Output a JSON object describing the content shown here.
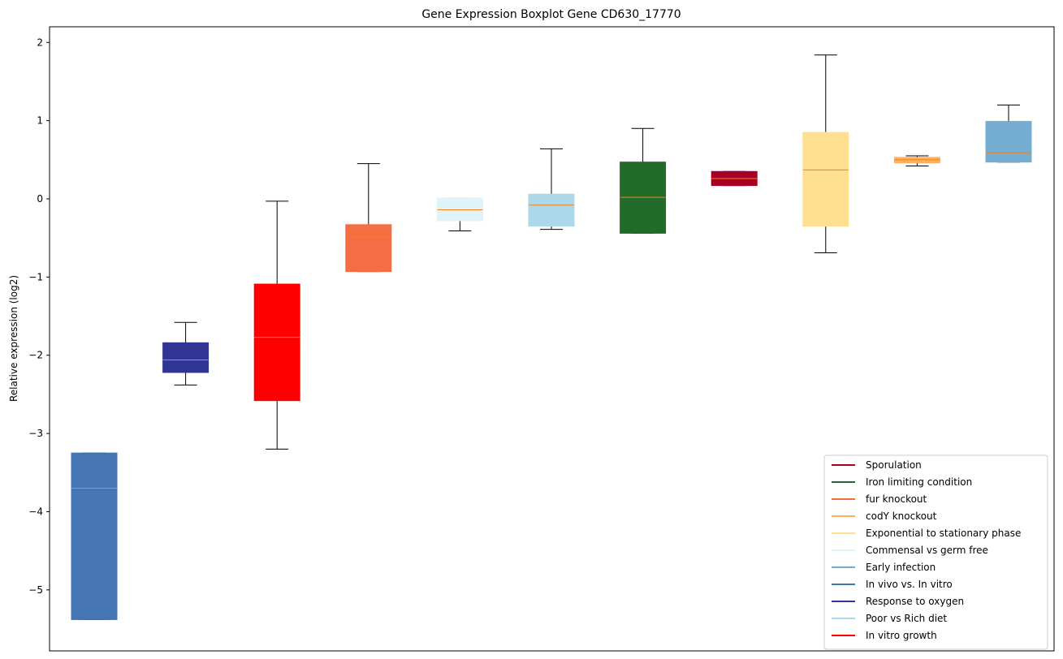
{
  "chart_data": {
    "type": "box",
    "title": "Gene Expression Boxplot Gene CD630_17770",
    "ylabel": "Relative expression (log2)",
    "xlabel": "",
    "ylim": [
      -5.78,
      2.2
    ],
    "yticks": [
      2,
      1,
      0,
      -1,
      -2,
      -3,
      -4,
      -5
    ],
    "ytick_labels": [
      "2",
      "1",
      "0",
      "−1",
      "−2",
      "−3",
      "−4",
      "−5"
    ],
    "legend_position": "lower-right",
    "median_color": "#ff7f0e",
    "series": [
      {
        "name": "In vivo vs. In vitro",
        "color": "#4575b4",
        "whisker_low": -5.38,
        "q1": -5.38,
        "median": -3.7,
        "q3": -3.25,
        "whisker_high": -3.25
      },
      {
        "name": "Response to oxygen",
        "color": "#313695",
        "whisker_low": -2.38,
        "q1": -2.22,
        "median": -2.06,
        "q3": -1.84,
        "whisker_high": -1.58
      },
      {
        "name": "In vitro growth",
        "color": "#ff0000",
        "whisker_low": -3.2,
        "q1": -2.58,
        "median": -1.77,
        "q3": -1.09,
        "whisker_high": -0.03
      },
      {
        "name": "fur knockout",
        "color": "#f46d43",
        "whisker_low": -0.93,
        "q1": -0.93,
        "median": -0.48,
        "q3": -0.33,
        "whisker_high": 0.45
      },
      {
        "name": "Commensal vs germ free",
        "color": "#e0f3f8",
        "whisker_low": -0.41,
        "q1": -0.28,
        "median": -0.14,
        "q3": 0.01,
        "whisker_high": 0.01
      },
      {
        "name": "Poor vs Rich diet",
        "color": "#abd9e9",
        "whisker_low": -0.39,
        "q1": -0.35,
        "median": -0.08,
        "q3": 0.06,
        "whisker_high": 0.64
      },
      {
        "name": "Iron limiting condition",
        "color": "#236b2b",
        "whisker_low": -0.44,
        "q1": -0.44,
        "median": 0.02,
        "q3": 0.47,
        "whisker_high": 0.9
      },
      {
        "name": "Sporulation",
        "color": "#a50026",
        "whisker_low": 0.17,
        "q1": 0.17,
        "median": 0.26,
        "q3": 0.35,
        "whisker_high": 0.35
      },
      {
        "name": "Exponential to stationary phase",
        "color": "#fee090",
        "whisker_low": -0.69,
        "q1": -0.35,
        "median": 0.37,
        "q3": 0.85,
        "whisker_high": 1.84
      },
      {
        "name": "codY knockout",
        "color": "#fdae61",
        "whisker_low": 0.42,
        "q1": 0.46,
        "median": 0.5,
        "q3": 0.53,
        "whisker_high": 0.55
      },
      {
        "name": "Early infection",
        "color": "#74add1",
        "whisker_low": 0.47,
        "q1": 0.47,
        "median": 0.59,
        "q3": 0.99,
        "whisker_high": 1.2
      }
    ],
    "legend": [
      {
        "name": "Sporulation",
        "color": "#a50026"
      },
      {
        "name": "Iron limiting condition",
        "color": "#236b2b"
      },
      {
        "name": "fur knockout",
        "color": "#f46d43"
      },
      {
        "name": "codY knockout",
        "color": "#fdae61"
      },
      {
        "name": "Exponential to stationary phase",
        "color": "#fee090"
      },
      {
        "name": "Commensal vs germ free",
        "color": "#e0f3f8"
      },
      {
        "name": "Early infection",
        "color": "#74add1"
      },
      {
        "name": "In vivo vs. In vitro",
        "color": "#4575b4"
      },
      {
        "name": "Response to oxygen",
        "color": "#313695"
      },
      {
        "name": "Poor vs Rich diet",
        "color": "#abd9e9"
      },
      {
        "name": "In vitro growth",
        "color": "#ff0000"
      }
    ]
  }
}
